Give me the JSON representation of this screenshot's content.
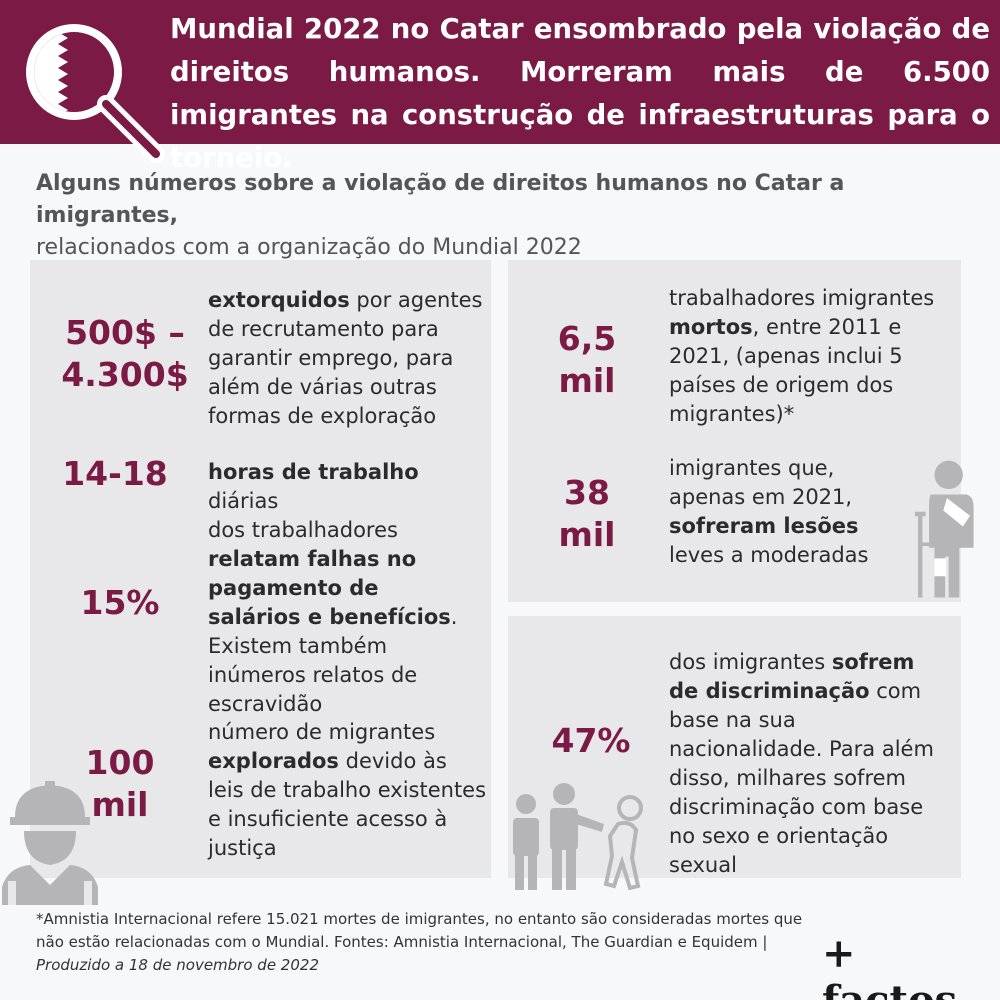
{
  "header": {
    "title": "Mundial 2022 no Catar ensombrado pela violação de direitos humanos. Morreram mais de 6.500 imigrantes na construção de infraestruturas para o torneio."
  },
  "subtitle": {
    "bold": "Alguns números sobre a violação de direitos humanos no Catar a imigrantes,",
    "normal": "relacionados com a organização do Mundial 2022"
  },
  "left": {
    "s1": {
      "num_line1": "500$ –",
      "num_line2": "4.300$",
      "b1": "extorquidos",
      "t1": " por agentes de recrutamento para garantir emprego, para além de várias outras formas de exploração"
    },
    "s2": {
      "num": "14-18",
      "b1": "horas de trabalho",
      "t1": " diárias"
    },
    "s3": {
      "num": "15%",
      "t0": "dos trabalhadores ",
      "b1": "relatam falhas no pagamento de salários e benefícios",
      "t1": ". Existem também inúmeros relatos de escravidão"
    },
    "s4": {
      "num_line1": "100",
      "num_line2": "mil",
      "t0": "número de migrantes ",
      "b1": "explorados",
      "t1": " devido às leis de trabalho existentes e insuficiente acesso à justiça"
    }
  },
  "right_top": {
    "s1": {
      "num_line1": "6,5",
      "num_line2": "mil",
      "t0": "trabalhadores imigrantes ",
      "b1": "mortos",
      "t1": ", entre 2011 e 2021, (apenas inclui 5 países de origem dos migrantes)*"
    },
    "s2": {
      "num_line1": "38",
      "num_line2": "mil",
      "t0": "imigrantes que, apenas em 2021, ",
      "b1": "sofreram lesões",
      "t1": " leves a moderadas"
    }
  },
  "right_bottom": {
    "s1": {
      "num": "47%",
      "t0": "dos imigrantes ",
      "b1": "sofrem de discriminação",
      "t1": " com base na sua nacionalidade. Para além disso, milhares sofrem discriminação com base no sexo e orientação sexual"
    }
  },
  "footer": {
    "note": "*Amnistia Internacional refere 15.021 mortes de imigrantes, no entanto são consideradas mortes que não estão relacionadas com o Mundial. Fontes: Amnistia Internacional, The Guardian e Equidem | ",
    "produced": "Produzido a 18 de novembro de 2022",
    "brand": "+ factos"
  },
  "colors": {
    "accent": "#7a1a45",
    "card": "#e8e8ea",
    "icon_gray": "#b5b5b8"
  },
  "icons": [
    "magnifier-qatar-flag-icon",
    "construction-worker-icon",
    "injured-worker-crutch-icon",
    "discrimination-people-icon"
  ]
}
